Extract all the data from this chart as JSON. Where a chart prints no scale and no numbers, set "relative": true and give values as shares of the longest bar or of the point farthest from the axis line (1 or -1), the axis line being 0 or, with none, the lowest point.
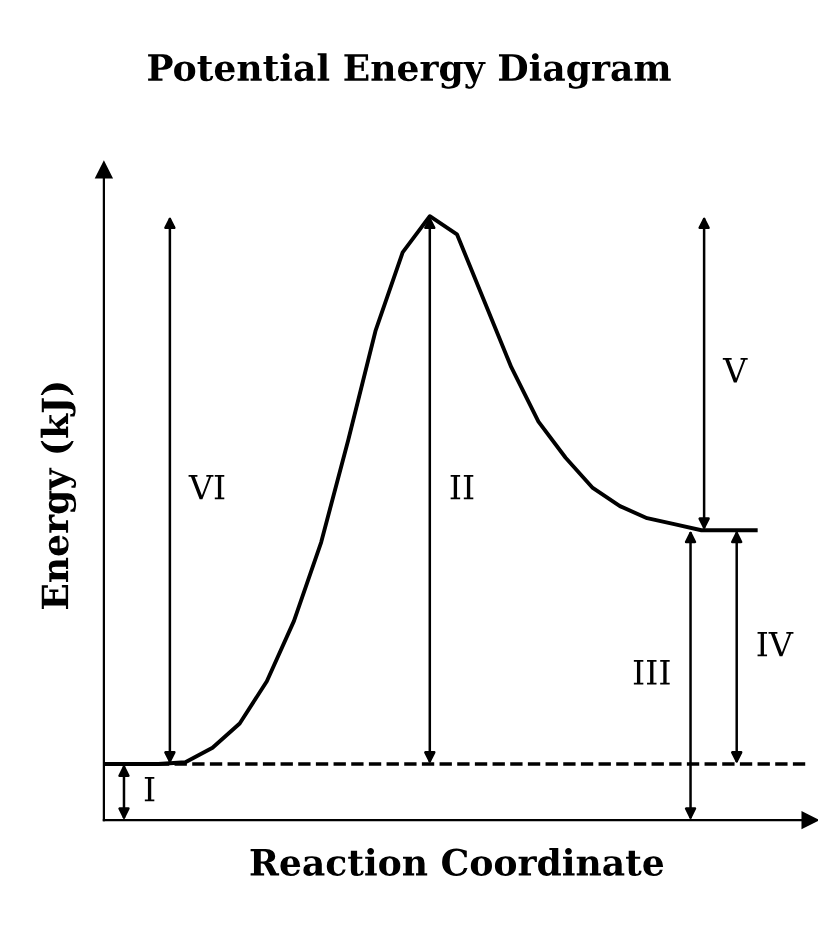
{
  "chart_data": {
    "type": "line",
    "relative": true,
    "title": "Potential Energy Diagram",
    "xlabel": "Reaction Coordinate",
    "ylabel": "Energy (kJ)",
    "categories": [
      null,
      null,
      null,
      null,
      null,
      null,
      null,
      null,
      null,
      null,
      null,
      null,
      null,
      null,
      null,
      null,
      null,
      null,
      null,
      null,
      null,
      null,
      null,
      null,
      null
    ],
    "series": [
      {
        "color": "#000000",
        "values": [
          0.093,
          0.093,
          0.093,
          0.096,
          0.12,
          0.16,
          0.23,
          0.33,
          0.46,
          0.63,
          0.81,
          0.94,
          1.0,
          0.97,
          0.86,
          0.75,
          0.66,
          0.6,
          0.55,
          0.52,
          0.5,
          0.49,
          0.48,
          0.48,
          0.48
        ]
      }
    ],
    "ref_lines": [
      {
        "axis": "y",
        "value": 0.093,
        "label": null,
        "color": "#000000",
        "line_style": "dashed"
      }
    ],
    "annotations": [
      "I",
      "II",
      "III",
      "IV",
      "V",
      "VI"
    ],
    "line_style": "solid",
    "marker": "none",
    "legend": false,
    "tick_labels": false
  }
}
